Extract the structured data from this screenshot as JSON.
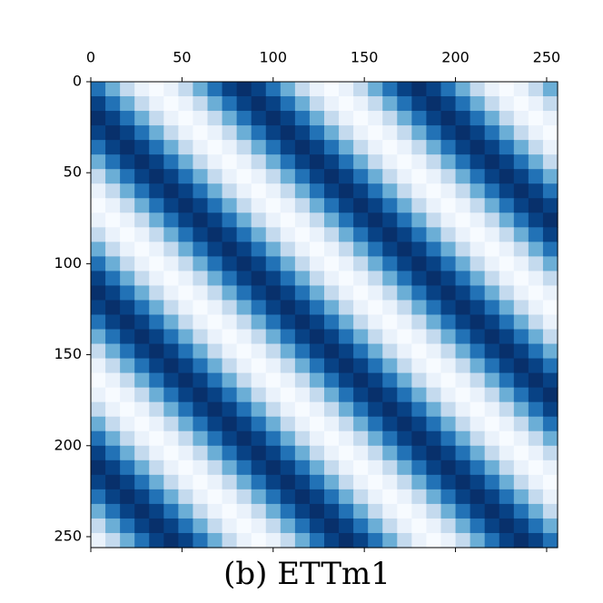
{
  "chart_data": {
    "type": "heatmap",
    "title": "(b) ETTm1",
    "colormap": "Blues",
    "xlim": [
      0,
      256
    ],
    "ylim": [
      256,
      0
    ],
    "xticks": [
      0,
      50,
      100,
      150,
      200,
      250
    ],
    "yticks": [
      0,
      50,
      100,
      150,
      200,
      250
    ],
    "values": [
      [
        0.72,
        0.5,
        0.28,
        0.11,
        0.05,
        0.11,
        0.28,
        0.5,
        0.72,
        0.89,
        0.95,
        0.89,
        0.72,
        0.5,
        0.28,
        0.11,
        0.05,
        0.11,
        0.28,
        0.5,
        0.72,
        0.89,
        0.95,
        0.89,
        0.72,
        0.5,
        0.28,
        0.11,
        0.05,
        0.11,
        0.28,
        0.5
      ],
      [
        0.89,
        0.72,
        0.5,
        0.28,
        0.11,
        0.05,
        0.11,
        0.28,
        0.5,
        0.72,
        0.89,
        0.95,
        0.89,
        0.72,
        0.5,
        0.28,
        0.11,
        0.05,
        0.11,
        0.28,
        0.5,
        0.72,
        0.89,
        0.95,
        0.89,
        0.72,
        0.5,
        0.28,
        0.11,
        0.05,
        0.11,
        0.28
      ],
      [
        0.95,
        0.89,
        0.72,
        0.5,
        0.28,
        0.11,
        0.05,
        0.11,
        0.28,
        0.5,
        0.72,
        0.89,
        0.95,
        0.89,
        0.72,
        0.5,
        0.28,
        0.11,
        0.05,
        0.11,
        0.28,
        0.5,
        0.72,
        0.89,
        0.95,
        0.89,
        0.72,
        0.5,
        0.28,
        0.11,
        0.05,
        0.11
      ],
      [
        0.89,
        0.95,
        0.89,
        0.72,
        0.5,
        0.28,
        0.11,
        0.05,
        0.11,
        0.28,
        0.5,
        0.72,
        0.89,
        0.95,
        0.89,
        0.72,
        0.5,
        0.28,
        0.11,
        0.05,
        0.11,
        0.28,
        0.5,
        0.72,
        0.89,
        0.95,
        0.89,
        0.72,
        0.5,
        0.28,
        0.11,
        0.05
      ],
      [
        0.72,
        0.89,
        0.95,
        0.89,
        0.72,
        0.5,
        0.28,
        0.11,
        0.05,
        0.11,
        0.28,
        0.5,
        0.72,
        0.89,
        0.95,
        0.89,
        0.72,
        0.5,
        0.28,
        0.11,
        0.05,
        0.11,
        0.28,
        0.5,
        0.72,
        0.89,
        0.95,
        0.89,
        0.72,
        0.5,
        0.28,
        0.11
      ],
      [
        0.5,
        0.72,
        0.89,
        0.95,
        0.89,
        0.72,
        0.5,
        0.28,
        0.11,
        0.05,
        0.11,
        0.28,
        0.5,
        0.72,
        0.89,
        0.95,
        0.89,
        0.72,
        0.5,
        0.28,
        0.11,
        0.05,
        0.11,
        0.28,
        0.5,
        0.72,
        0.89,
        0.95,
        0.89,
        0.72,
        0.5,
        0.28
      ],
      [
        0.28,
        0.5,
        0.72,
        0.89,
        0.95,
        0.89,
        0.72,
        0.5,
        0.28,
        0.11,
        0.05,
        0.11,
        0.28,
        0.5,
        0.72,
        0.89,
        0.95,
        0.89,
        0.72,
        0.5,
        0.28,
        0.11,
        0.05,
        0.11,
        0.28,
        0.5,
        0.72,
        0.89,
        0.95,
        0.89,
        0.72,
        0.5
      ],
      [
        0.11,
        0.28,
        0.5,
        0.72,
        0.89,
        0.95,
        0.89,
        0.72,
        0.5,
        0.28,
        0.11,
        0.05,
        0.11,
        0.28,
        0.5,
        0.72,
        0.89,
        0.95,
        0.89,
        0.72,
        0.5,
        0.28,
        0.11,
        0.05,
        0.11,
        0.28,
        0.5,
        0.72,
        0.89,
        0.95,
        0.89,
        0.72
      ],
      [
        0.05,
        0.11,
        0.28,
        0.5,
        0.72,
        0.89,
        0.95,
        0.89,
        0.72,
        0.5,
        0.28,
        0.11,
        0.05,
        0.11,
        0.28,
        0.5,
        0.72,
        0.89,
        0.95,
        0.89,
        0.72,
        0.5,
        0.28,
        0.11,
        0.05,
        0.11,
        0.28,
        0.5,
        0.72,
        0.89,
        0.95,
        0.89
      ],
      [
        0.11,
        0.05,
        0.11,
        0.28,
        0.5,
        0.72,
        0.89,
        0.95,
        0.89,
        0.72,
        0.5,
        0.28,
        0.11,
        0.05,
        0.11,
        0.28,
        0.5,
        0.72,
        0.89,
        0.95,
        0.89,
        0.72,
        0.5,
        0.28,
        0.11,
        0.05,
        0.11,
        0.28,
        0.5,
        0.72,
        0.89,
        0.95
      ],
      [
        0.28,
        0.11,
        0.05,
        0.11,
        0.28,
        0.5,
        0.72,
        0.89,
        0.95,
        0.89,
        0.72,
        0.5,
        0.28,
        0.11,
        0.05,
        0.11,
        0.28,
        0.5,
        0.72,
        0.89,
        0.95,
        0.89,
        0.72,
        0.5,
        0.28,
        0.11,
        0.05,
        0.11,
        0.28,
        0.5,
        0.72,
        0.89
      ],
      [
        0.5,
        0.28,
        0.11,
        0.05,
        0.11,
        0.28,
        0.5,
        0.72,
        0.89,
        0.95,
        0.89,
        0.72,
        0.5,
        0.28,
        0.11,
        0.05,
        0.11,
        0.28,
        0.5,
        0.72,
        0.89,
        0.95,
        0.89,
        0.72,
        0.5,
        0.28,
        0.11,
        0.05,
        0.11,
        0.28,
        0.5,
        0.72
      ],
      [
        0.72,
        0.5,
        0.28,
        0.11,
        0.05,
        0.11,
        0.28,
        0.5,
        0.72,
        0.89,
        0.95,
        0.89,
        0.72,
        0.5,
        0.28,
        0.11,
        0.05,
        0.11,
        0.28,
        0.5,
        0.72,
        0.89,
        0.95,
        0.89,
        0.72,
        0.5,
        0.28,
        0.11,
        0.05,
        0.11,
        0.28,
        0.5
      ],
      [
        0.89,
        0.72,
        0.5,
        0.28,
        0.11,
        0.05,
        0.11,
        0.28,
        0.5,
        0.72,
        0.89,
        0.95,
        0.89,
        0.72,
        0.5,
        0.28,
        0.11,
        0.05,
        0.11,
        0.28,
        0.5,
        0.72,
        0.89,
        0.95,
        0.89,
        0.72,
        0.5,
        0.28,
        0.11,
        0.05,
        0.11,
        0.28
      ],
      [
        0.95,
        0.89,
        0.72,
        0.5,
        0.28,
        0.11,
        0.05,
        0.11,
        0.28,
        0.5,
        0.72,
        0.89,
        0.95,
        0.89,
        0.72,
        0.5,
        0.28,
        0.11,
        0.05,
        0.11,
        0.28,
        0.5,
        0.72,
        0.89,
        0.95,
        0.89,
        0.72,
        0.5,
        0.28,
        0.11,
        0.05,
        0.11
      ],
      [
        0.89,
        0.95,
        0.89,
        0.72,
        0.5,
        0.28,
        0.11,
        0.05,
        0.11,
        0.28,
        0.5,
        0.72,
        0.89,
        0.95,
        0.89,
        0.72,
        0.5,
        0.28,
        0.11,
        0.05,
        0.11,
        0.28,
        0.5,
        0.72,
        0.89,
        0.95,
        0.89,
        0.72,
        0.5,
        0.28,
        0.11,
        0.05
      ],
      [
        0.72,
        0.89,
        0.95,
        0.89,
        0.72,
        0.5,
        0.28,
        0.11,
        0.05,
        0.11,
        0.28,
        0.5,
        0.72,
        0.89,
        0.95,
        0.89,
        0.72,
        0.5,
        0.28,
        0.11,
        0.05,
        0.11,
        0.28,
        0.5,
        0.72,
        0.89,
        0.95,
        0.89,
        0.72,
        0.5,
        0.28,
        0.11
      ],
      [
        0.5,
        0.72,
        0.89,
        0.95,
        0.89,
        0.72,
        0.5,
        0.28,
        0.11,
        0.05,
        0.11,
        0.28,
        0.5,
        0.72,
        0.89,
        0.95,
        0.89,
        0.72,
        0.5,
        0.28,
        0.11,
        0.05,
        0.11,
        0.28,
        0.5,
        0.72,
        0.89,
        0.95,
        0.89,
        0.72,
        0.5,
        0.28
      ],
      [
        0.28,
        0.5,
        0.72,
        0.89,
        0.95,
        0.89,
        0.72,
        0.5,
        0.28,
        0.11,
        0.05,
        0.11,
        0.28,
        0.5,
        0.72,
        0.89,
        0.95,
        0.89,
        0.72,
        0.5,
        0.28,
        0.11,
        0.05,
        0.11,
        0.28,
        0.5,
        0.72,
        0.89,
        0.95,
        0.89,
        0.72,
        0.5
      ],
      [
        0.11,
        0.28,
        0.5,
        0.72,
        0.89,
        0.95,
        0.89,
        0.72,
        0.5,
        0.28,
        0.11,
        0.05,
        0.11,
        0.28,
        0.5,
        0.72,
        0.89,
        0.95,
        0.89,
        0.72,
        0.5,
        0.28,
        0.11,
        0.05,
        0.11,
        0.28,
        0.5,
        0.72,
        0.89,
        0.95,
        0.89,
        0.72
      ],
      [
        0.05,
        0.11,
        0.28,
        0.5,
        0.72,
        0.89,
        0.95,
        0.89,
        0.72,
        0.5,
        0.28,
        0.11,
        0.05,
        0.11,
        0.28,
        0.5,
        0.72,
        0.89,
        0.95,
        0.89,
        0.72,
        0.5,
        0.28,
        0.11,
        0.05,
        0.11,
        0.28,
        0.5,
        0.72,
        0.89,
        0.95,
        0.89
      ],
      [
        0.11,
        0.05,
        0.11,
        0.28,
        0.5,
        0.72,
        0.89,
        0.95,
        0.89,
        0.72,
        0.5,
        0.28,
        0.11,
        0.05,
        0.11,
        0.28,
        0.5,
        0.72,
        0.89,
        0.95,
        0.89,
        0.72,
        0.5,
        0.28,
        0.11,
        0.05,
        0.11,
        0.28,
        0.5,
        0.72,
        0.89,
        0.95
      ],
      [
        0.28,
        0.11,
        0.05,
        0.11,
        0.28,
        0.5,
        0.72,
        0.89,
        0.95,
        0.89,
        0.72,
        0.5,
        0.28,
        0.11,
        0.05,
        0.11,
        0.28,
        0.5,
        0.72,
        0.89,
        0.95,
        0.89,
        0.72,
        0.5,
        0.28,
        0.11,
        0.05,
        0.11,
        0.28,
        0.5,
        0.72,
        0.89
      ],
      [
        0.5,
        0.28,
        0.11,
        0.05,
        0.11,
        0.28,
        0.5,
        0.72,
        0.89,
        0.95,
        0.89,
        0.72,
        0.5,
        0.28,
        0.11,
        0.05,
        0.11,
        0.28,
        0.5,
        0.72,
        0.89,
        0.95,
        0.89,
        0.72,
        0.5,
        0.28,
        0.11,
        0.05,
        0.11,
        0.28,
        0.5,
        0.72
      ],
      [
        0.72,
        0.5,
        0.28,
        0.11,
        0.05,
        0.11,
        0.28,
        0.5,
        0.72,
        0.89,
        0.95,
        0.89,
        0.72,
        0.5,
        0.28,
        0.11,
        0.05,
        0.11,
        0.28,
        0.5,
        0.72,
        0.89,
        0.95,
        0.89,
        0.72,
        0.5,
        0.28,
        0.11,
        0.05,
        0.11,
        0.28,
        0.5
      ],
      [
        0.89,
        0.72,
        0.5,
        0.28,
        0.11,
        0.05,
        0.11,
        0.28,
        0.5,
        0.72,
        0.89,
        0.95,
        0.89,
        0.72,
        0.5,
        0.28,
        0.11,
        0.05,
        0.11,
        0.28,
        0.5,
        0.72,
        0.89,
        0.95,
        0.89,
        0.72,
        0.5,
        0.28,
        0.11,
        0.05,
        0.11,
        0.28
      ],
      [
        0.95,
        0.89,
        0.72,
        0.5,
        0.28,
        0.11,
        0.05,
        0.11,
        0.28,
        0.5,
        0.72,
        0.89,
        0.95,
        0.89,
        0.72,
        0.5,
        0.28,
        0.11,
        0.05,
        0.11,
        0.28,
        0.5,
        0.72,
        0.89,
        0.95,
        0.89,
        0.72,
        0.5,
        0.28,
        0.11,
        0.05,
        0.11
      ],
      [
        0.89,
        0.95,
        0.89,
        0.72,
        0.5,
        0.28,
        0.11,
        0.05,
        0.11,
        0.28,
        0.5,
        0.72,
        0.89,
        0.95,
        0.89,
        0.72,
        0.5,
        0.28,
        0.11,
        0.05,
        0.11,
        0.28,
        0.5,
        0.72,
        0.89,
        0.95,
        0.89,
        0.72,
        0.5,
        0.28,
        0.11,
        0.05
      ],
      [
        0.72,
        0.89,
        0.95,
        0.89,
        0.72,
        0.5,
        0.28,
        0.11,
        0.05,
        0.11,
        0.28,
        0.5,
        0.72,
        0.89,
        0.95,
        0.89,
        0.72,
        0.5,
        0.28,
        0.11,
        0.05,
        0.11,
        0.28,
        0.5,
        0.72,
        0.89,
        0.95,
        0.89,
        0.72,
        0.5,
        0.28,
        0.11
      ],
      [
        0.5,
        0.72,
        0.89,
        0.95,
        0.89,
        0.72,
        0.5,
        0.28,
        0.11,
        0.05,
        0.11,
        0.28,
        0.5,
        0.72,
        0.89,
        0.95,
        0.89,
        0.72,
        0.5,
        0.28,
        0.11,
        0.05,
        0.11,
        0.28,
        0.5,
        0.72,
        0.89,
        0.95,
        0.89,
        0.72,
        0.5,
        0.28
      ],
      [
        0.28,
        0.5,
        0.72,
        0.89,
        0.95,
        0.89,
        0.72,
        0.5,
        0.28,
        0.11,
        0.05,
        0.11,
        0.28,
        0.5,
        0.72,
        0.89,
        0.95,
        0.89,
        0.72,
        0.5,
        0.28,
        0.11,
        0.05,
        0.11,
        0.28,
        0.5,
        0.72,
        0.89,
        0.95,
        0.89,
        0.72,
        0.5
      ],
      [
        0.11,
        0.28,
        0.5,
        0.72,
        0.89,
        0.95,
        0.89,
        0.72,
        0.5,
        0.28,
        0.11,
        0.05,
        0.11,
        0.28,
        0.5,
        0.72,
        0.89,
        0.95,
        0.89,
        0.72,
        0.5,
        0.28,
        0.11,
        0.05,
        0.11,
        0.28,
        0.5,
        0.72,
        0.89,
        0.95,
        0.89,
        0.72
      ]
    ]
  }
}
